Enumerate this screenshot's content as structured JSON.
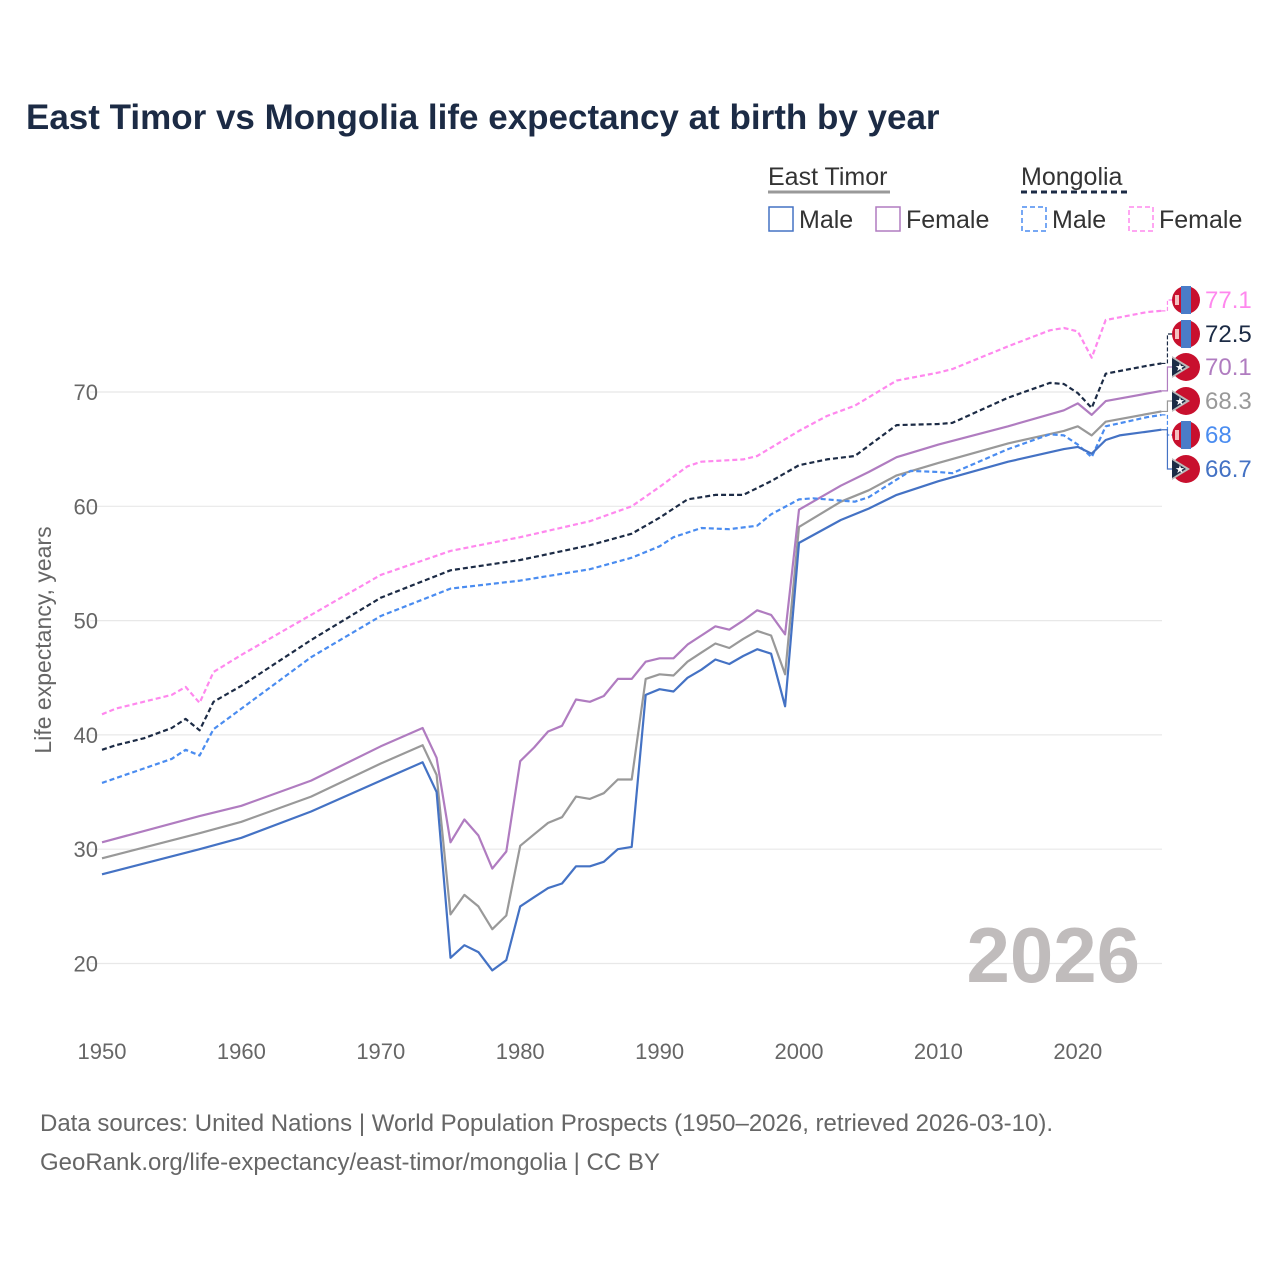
{
  "chart_data": {
    "type": "line",
    "title": "East Timor vs Mongolia life expectancy at birth by year",
    "xlabel": "",
    "ylabel": "Life expectancy, years",
    "xlim": [
      1950,
      2026
    ],
    "ylim": [
      15,
      80
    ],
    "x_ticks": [
      "1950",
      "1960",
      "1970",
      "1980",
      "1990",
      "2000",
      "2010",
      "2020"
    ],
    "y_ticks": [
      "20",
      "30",
      "40",
      "50",
      "60",
      "70"
    ],
    "grid": true,
    "year_watermark": "2026",
    "legend": {
      "placement": "top-right",
      "groups": [
        {
          "name": "East Timor",
          "items": [
            "Male",
            "Female"
          ]
        },
        {
          "name": "Mongolia",
          "items": [
            "Male",
            "Female"
          ]
        }
      ]
    },
    "series": [
      {
        "name": "Mongolia Female",
        "color": "#ff88ee",
        "dashed": true,
        "end_label": "77.1",
        "flag": "mongolia",
        "points": [
          [
            1950,
            41.8
          ],
          [
            1951,
            42.3
          ],
          [
            1955,
            43.5
          ],
          [
            1956,
            44.2
          ],
          [
            1957,
            42.8
          ],
          [
            1958,
            45.5
          ],
          [
            1960,
            47.0
          ],
          [
            1965,
            50.5
          ],
          [
            1970,
            54.0
          ],
          [
            1975,
            56.1
          ],
          [
            1980,
            57.3
          ],
          [
            1985,
            58.7
          ],
          [
            1988,
            60.0
          ],
          [
            1990,
            61.7
          ],
          [
            1992,
            63.5
          ],
          [
            1993,
            63.9
          ],
          [
            1996,
            64.1
          ],
          [
            1997,
            64.4
          ],
          [
            2000,
            66.6
          ],
          [
            2002,
            67.9
          ],
          [
            2004,
            68.8
          ],
          [
            2007,
            71.0
          ],
          [
            2010,
            71.7
          ],
          [
            2011,
            72.0
          ],
          [
            2015,
            74.0
          ],
          [
            2018,
            75.4
          ],
          [
            2019,
            75.6
          ],
          [
            2020,
            75.3
          ],
          [
            2021,
            73.0
          ],
          [
            2022,
            76.3
          ],
          [
            2025,
            77.0
          ],
          [
            2026,
            77.1
          ]
        ]
      },
      {
        "name": "Mongolia",
        "color": "#1c2b45",
        "dashed": true,
        "end_label": "72.5",
        "flag": "mongolia",
        "points": [
          [
            1950,
            38.7
          ],
          [
            1951,
            39.1
          ],
          [
            1953,
            39.7
          ],
          [
            1955,
            40.6
          ],
          [
            1956,
            41.4
          ],
          [
            1957,
            40.4
          ],
          [
            1958,
            42.9
          ],
          [
            1960,
            44.3
          ],
          [
            1965,
            48.3
          ],
          [
            1970,
            52.0
          ],
          [
            1975,
            54.4
          ],
          [
            1980,
            55.3
          ],
          [
            1985,
            56.6
          ],
          [
            1988,
            57.6
          ],
          [
            1990,
            59.0
          ],
          [
            1992,
            60.6
          ],
          [
            1994,
            61.0
          ],
          [
            1996,
            61.0
          ],
          [
            1998,
            62.2
          ],
          [
            2000,
            63.6
          ],
          [
            2002,
            64.1
          ],
          [
            2004,
            64.4
          ],
          [
            2007,
            67.1
          ],
          [
            2010,
            67.2
          ],
          [
            2011,
            67.3
          ],
          [
            2015,
            69.5
          ],
          [
            2018,
            70.8
          ],
          [
            2019,
            70.7
          ],
          [
            2020,
            69.9
          ],
          [
            2021,
            68.6
          ],
          [
            2022,
            71.6
          ],
          [
            2025,
            72.3
          ],
          [
            2026,
            72.5
          ]
        ]
      },
      {
        "name": "East Timor Female",
        "color": "#b07cc0",
        "dashed": false,
        "end_label": "70.1",
        "flag": "east-timor",
        "points": [
          [
            1950,
            30.6
          ],
          [
            1957,
            32.9
          ],
          [
            1960,
            33.8
          ],
          [
            1965,
            36.0
          ],
          [
            1970,
            39.0
          ],
          [
            1973,
            40.6
          ],
          [
            1974,
            38.0
          ],
          [
            1975,
            30.6
          ],
          [
            1976,
            32.6
          ],
          [
            1977,
            31.2
          ],
          [
            1978,
            28.3
          ],
          [
            1979,
            29.8
          ],
          [
            1980,
            37.7
          ],
          [
            1981,
            38.9
          ],
          [
            1982,
            40.3
          ],
          [
            1983,
            40.8
          ],
          [
            1984,
            43.1
          ],
          [
            1985,
            42.9
          ],
          [
            1986,
            43.4
          ],
          [
            1987,
            44.9
          ],
          [
            1988,
            44.9
          ],
          [
            1989,
            46.4
          ],
          [
            1990,
            46.7
          ],
          [
            1991,
            46.7
          ],
          [
            1992,
            47.9
          ],
          [
            1993,
            48.7
          ],
          [
            1994,
            49.5
          ],
          [
            1995,
            49.2
          ],
          [
            1996,
            50.0
          ],
          [
            1997,
            50.9
          ],
          [
            1998,
            50.5
          ],
          [
            1999,
            48.8
          ],
          [
            2000,
            59.7
          ],
          [
            2003,
            61.8
          ],
          [
            2005,
            63.0
          ],
          [
            2007,
            64.3
          ],
          [
            2010,
            65.4
          ],
          [
            2015,
            67.0
          ],
          [
            2019,
            68.4
          ],
          [
            2020,
            69.0
          ],
          [
            2021,
            68.0
          ],
          [
            2022,
            69.2
          ],
          [
            2026,
            70.1
          ]
        ]
      },
      {
        "name": "East Timor",
        "color": "#999999",
        "dashed": false,
        "end_label": "68.3",
        "flag": "east-timor",
        "points": [
          [
            1950,
            29.2
          ],
          [
            1957,
            31.4
          ],
          [
            1960,
            32.4
          ],
          [
            1965,
            34.6
          ],
          [
            1970,
            37.5
          ],
          [
            1973,
            39.1
          ],
          [
            1974,
            36.5
          ],
          [
            1975,
            24.3
          ],
          [
            1976,
            26.0
          ],
          [
            1977,
            25.0
          ],
          [
            1978,
            23.0
          ],
          [
            1979,
            24.2
          ],
          [
            1980,
            30.3
          ],
          [
            1981,
            31.3
          ],
          [
            1982,
            32.3
          ],
          [
            1983,
            32.8
          ],
          [
            1984,
            34.6
          ],
          [
            1985,
            34.4
          ],
          [
            1986,
            34.9
          ],
          [
            1987,
            36.1
          ],
          [
            1988,
            36.1
          ],
          [
            1989,
            44.9
          ],
          [
            1990,
            45.3
          ],
          [
            1991,
            45.2
          ],
          [
            1992,
            46.4
          ],
          [
            1993,
            47.2
          ],
          [
            1994,
            48.0
          ],
          [
            1995,
            47.6
          ],
          [
            1996,
            48.4
          ],
          [
            1997,
            49.1
          ],
          [
            1998,
            48.7
          ],
          [
            1999,
            45.3
          ],
          [
            2000,
            58.2
          ],
          [
            2003,
            60.4
          ],
          [
            2005,
            61.4
          ],
          [
            2007,
            62.7
          ],
          [
            2010,
            63.8
          ],
          [
            2015,
            65.5
          ],
          [
            2019,
            66.6
          ],
          [
            2020,
            67.0
          ],
          [
            2021,
            66.2
          ],
          [
            2022,
            67.4
          ],
          [
            2026,
            68.3
          ]
        ]
      },
      {
        "name": "Mongolia Male",
        "color": "#4a8cf0",
        "dashed": true,
        "end_label": "68",
        "flag": "mongolia",
        "points": [
          [
            1950,
            35.8
          ],
          [
            1955,
            37.9
          ],
          [
            1956,
            38.7
          ],
          [
            1957,
            38.2
          ],
          [
            1958,
            40.5
          ],
          [
            1960,
            42.3
          ],
          [
            1965,
            46.8
          ],
          [
            1970,
            50.4
          ],
          [
            1975,
            52.8
          ],
          [
            1980,
            53.5
          ],
          [
            1985,
            54.5
          ],
          [
            1988,
            55.5
          ],
          [
            1990,
            56.5
          ],
          [
            1991,
            57.3
          ],
          [
            1993,
            58.1
          ],
          [
            1995,
            58.0
          ],
          [
            1997,
            58.3
          ],
          [
            1998,
            59.3
          ],
          [
            2000,
            60.6
          ],
          [
            2001,
            60.7
          ],
          [
            2004,
            60.4
          ],
          [
            2005,
            60.8
          ],
          [
            2008,
            63.1
          ],
          [
            2010,
            63.0
          ],
          [
            2011,
            62.9
          ],
          [
            2015,
            65.0
          ],
          [
            2018,
            66.3
          ],
          [
            2019,
            66.2
          ],
          [
            2020,
            65.4
          ],
          [
            2021,
            64.3
          ],
          [
            2022,
            67.0
          ],
          [
            2025,
            67.8
          ],
          [
            2026,
            68.0
          ]
        ]
      },
      {
        "name": "East Timor Male",
        "color": "#4472c4",
        "dashed": false,
        "end_label": "66.7",
        "flag": "east-timor",
        "points": [
          [
            1950,
            27.8
          ],
          [
            1957,
            30.0
          ],
          [
            1960,
            31.0
          ],
          [
            1965,
            33.3
          ],
          [
            1970,
            36.0
          ],
          [
            1973,
            37.6
          ],
          [
            1974,
            35.0
          ],
          [
            1975,
            20.5
          ],
          [
            1976,
            21.6
          ],
          [
            1977,
            21.0
          ],
          [
            1978,
            19.4
          ],
          [
            1979,
            20.3
          ],
          [
            1980,
            25.0
          ],
          [
            1981,
            25.8
          ],
          [
            1982,
            26.6
          ],
          [
            1983,
            27.0
          ],
          [
            1984,
            28.5
          ],
          [
            1985,
            28.5
          ],
          [
            1986,
            28.9
          ],
          [
            1987,
            30.0
          ],
          [
            1988,
            30.2
          ],
          [
            1989,
            43.5
          ],
          [
            1990,
            44.0
          ],
          [
            1991,
            43.8
          ],
          [
            1992,
            45.0
          ],
          [
            1993,
            45.7
          ],
          [
            1994,
            46.6
          ],
          [
            1995,
            46.2
          ],
          [
            1996,
            46.9
          ],
          [
            1997,
            47.5
          ],
          [
            1998,
            47.1
          ],
          [
            1999,
            42.5
          ],
          [
            2000,
            56.8
          ],
          [
            2003,
            58.8
          ],
          [
            2005,
            59.8
          ],
          [
            2007,
            61.0
          ],
          [
            2010,
            62.2
          ],
          [
            2015,
            63.9
          ],
          [
            2019,
            65.0
          ],
          [
            2020,
            65.2
          ],
          [
            2021,
            64.6
          ],
          [
            2022,
            65.8
          ],
          [
            2023,
            66.2
          ],
          [
            2026,
            66.7
          ]
        ]
      }
    ],
    "footer": [
      "Data sources: United Nations | World Population Prospects (1950–2026, retrieved 2026-03-10).",
      "GeoRank.org/life-expectancy/east-timor/mongolia | CC BY"
    ]
  }
}
